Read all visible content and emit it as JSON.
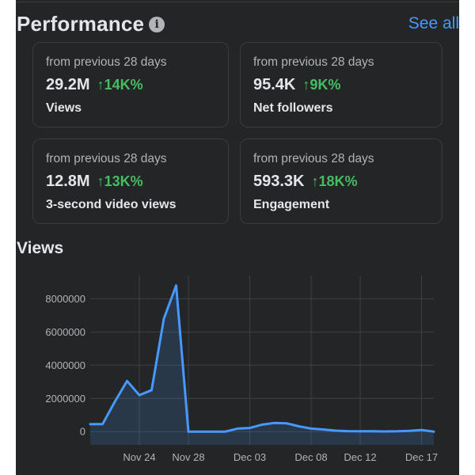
{
  "performance": {
    "title": "Performance",
    "see_all": "See all",
    "cards": [
      {
        "period": "from previous 28 days",
        "value": "29.2M",
        "change": "↑14K%",
        "label": "Views"
      },
      {
        "period": "from previous 28 days",
        "value": "95.4K",
        "change": "↑9K%",
        "label": "Net followers"
      },
      {
        "period": "from previous 28 days",
        "value": "12.8M",
        "change": "↑13K%",
        "label": "3-second video views"
      },
      {
        "period": "from previous 28 days",
        "value": "593.3K",
        "change": "↑18K%",
        "label": "Engagement"
      }
    ]
  },
  "views_section": {
    "title": "Views"
  },
  "colors": {
    "background": "#242527",
    "accent": "#4599ff",
    "positive": "#45bd62",
    "line": "#4599ff"
  },
  "chart_data": {
    "type": "area",
    "title": "",
    "xlabel": "",
    "ylabel": "",
    "ylim": [
      -800000,
      9400000
    ],
    "y_ticks": [
      "8000000",
      "6000000",
      "4000000",
      "2000000",
      "0"
    ],
    "y_tick_values": [
      8000000,
      6000000,
      4000000,
      2000000,
      0
    ],
    "x_ticks": [
      "Nov 24",
      "Nov 28",
      "Dec 03",
      "Dec 08",
      "Dec 12",
      "Dec 17"
    ],
    "x_tick_values": [
      "2023-11-24",
      "2023-11-28",
      "2023-12-03",
      "2023-12-08",
      "2023-12-12",
      "2023-12-17"
    ],
    "grid": true,
    "series": [
      {
        "x": [
          "2023-11-20",
          "2023-11-21",
          "2023-11-22",
          "2023-11-23",
          "2023-11-24",
          "2023-11-25",
          "2023-11-26",
          "2023-11-27",
          "2023-11-28",
          "2023-11-29",
          "2023-11-30",
          "2023-12-01",
          "2023-12-02",
          "2023-12-03",
          "2023-12-04",
          "2023-12-05",
          "2023-12-06",
          "2023-12-07",
          "2023-12-08",
          "2023-12-09",
          "2023-12-10",
          "2023-12-11",
          "2023-12-12",
          "2023-12-13",
          "2023-12-14",
          "2023-12-15",
          "2023-12-16",
          "2023-12-17",
          "2023-12-18"
        ],
        "y": [
          450000,
          450000,
          1800000,
          3050000,
          2200000,
          2500000,
          6800000,
          8800000,
          0,
          0,
          0,
          0,
          180000,
          220000,
          420000,
          520000,
          500000,
          320000,
          180000,
          130000,
          60000,
          30000,
          20000,
          20000,
          10000,
          20000,
          50000,
          100000,
          0
        ]
      }
    ]
  }
}
